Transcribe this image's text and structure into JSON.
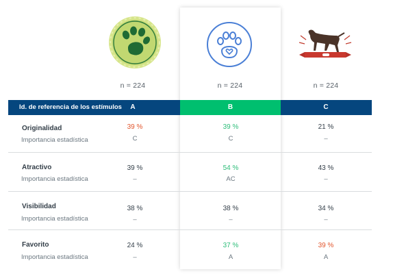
{
  "columns": [
    {
      "id": "A",
      "n": "n = 224",
      "icon": "green-paw-print-badge"
    },
    {
      "id": "B",
      "n": "n = 224",
      "icon": "blue-paw-heart-outline"
    },
    {
      "id": "C",
      "n": "n = 224",
      "icon": "dog-with-ribbon-banner"
    }
  ],
  "header": {
    "first": "Id. de referencia de los estímulos",
    "active_column": "B"
  },
  "rows": [
    {
      "label": "Originalidad",
      "sub": "Importancia estadística",
      "values": [
        "39 %",
        "39 %",
        "21 %"
      ],
      "status": [
        "neg",
        "pos",
        "neutral"
      ],
      "sig": [
        "C",
        "C",
        "–"
      ]
    },
    {
      "label": "Atractivo",
      "sub": "Importancia estadística",
      "values": [
        "39 %",
        "54 %",
        "43 %"
      ],
      "status": [
        "neutral",
        "pos",
        "neutral"
      ],
      "sig": [
        "–",
        "AC",
        "–"
      ]
    },
    {
      "label": "Visibilidad",
      "sub": "Importancia estadística",
      "values": [
        "38 %",
        "38 %",
        "34 %"
      ],
      "status": [
        "neutral",
        "neutral",
        "neutral"
      ],
      "sig": [
        "–",
        "–",
        "–"
      ]
    },
    {
      "label": "Favorito",
      "sub": "Importancia estadística",
      "values": [
        "24 %",
        "37 %",
        "39 %"
      ],
      "status": [
        "neutral",
        "pos",
        "neg"
      ],
      "sig": [
        "–",
        "A",
        "A"
      ]
    }
  ],
  "colors": {
    "header": "#05467e",
    "highlight": "#00bf6f",
    "positive": "#2dbd79",
    "negative": "#e2562d"
  }
}
